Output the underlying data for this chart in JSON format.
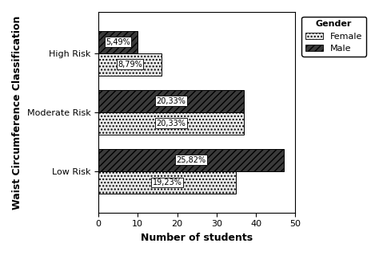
{
  "categories": [
    "Low Risk",
    "Moderate Risk",
    "High Risk"
  ],
  "male_values": [
    47,
    37,
    10
  ],
  "female_values": [
    35,
    37,
    16
  ],
  "male_labels": [
    "25,82%",
    "20,33%",
    "5,49%"
  ],
  "female_labels": [
    "19,23%",
    "20,33%",
    "8,79%"
  ],
  "xlabel": "Number of students",
  "ylabel": "Waist Circumference Classification",
  "xlim": [
    0,
    50
  ],
  "xticks": [
    0,
    10,
    20,
    30,
    40,
    50
  ],
  "legend_title": "Gender",
  "legend_labels": [
    "Female",
    "Male"
  ],
  "bar_height": 0.38,
  "male_facecolor": "#3a3a3a",
  "female_facecolor": "#e8e8e8",
  "label_fontsize": 7,
  "axis_label_fontsize": 9,
  "tick_fontsize": 8,
  "legend_fontsize": 8,
  "background_color": "#ffffff"
}
